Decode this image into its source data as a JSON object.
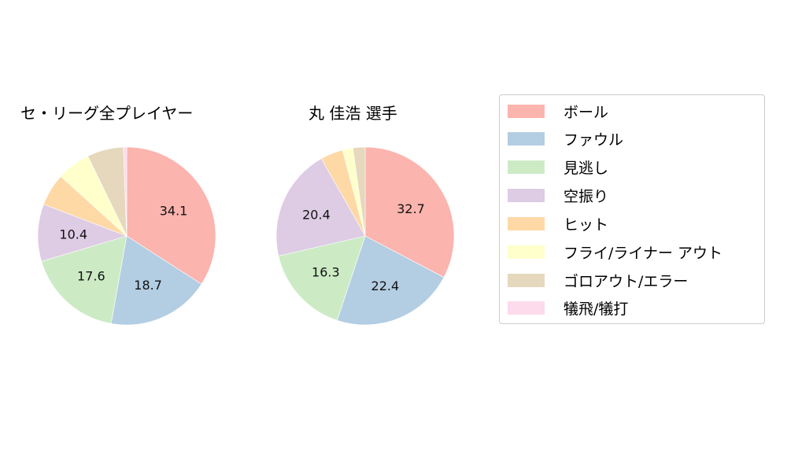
{
  "chart_data": [
    {
      "type": "pie",
      "title": "セ・リーグ全プレイヤー",
      "categories": [
        "ボール",
        "ファウル",
        "見逃し",
        "空振り",
        "ヒット",
        "フライ/ライナー アウト",
        "ゴロアウト/エラー",
        "犠飛/犠打"
      ],
      "values": [
        34.1,
        18.7,
        17.6,
        10.4,
        5.9,
        6.1,
        6.6,
        0.6
      ],
      "labels_shown": [
        "34.1",
        "18.7",
        "17.6",
        "10.4",
        "",
        "",
        "",
        ""
      ]
    },
    {
      "type": "pie",
      "title": "丸 佳浩  選手",
      "categories": [
        "ボール",
        "ファウル",
        "見逃し",
        "空振り",
        "ヒット",
        "フライ/ライナー アウト",
        "ゴロアウト/エラー",
        "犠飛/犠打"
      ],
      "values": [
        32.7,
        22.4,
        16.3,
        20.4,
        4.1,
        1.9,
        2.2,
        0.0
      ],
      "labels_shown": [
        "32.7",
        "22.4",
        "16.3",
        "20.4",
        "",
        "",
        "",
        ""
      ]
    }
  ],
  "colors": [
    "#fbb4ae",
    "#b3cde3",
    "#ccebc5",
    "#decbe4",
    "#fed9a6",
    "#ffffcc",
    "#e5d8bd",
    "#fddaec"
  ],
  "titles": {
    "left": "セ・リーグ全プレイヤー",
    "right": "丸 佳浩  選手"
  },
  "legend": {
    "items": [
      {
        "label": "ボール",
        "color": "#fbb4ae"
      },
      {
        "label": "ファウル",
        "color": "#b3cde3"
      },
      {
        "label": "見逃し",
        "color": "#ccebc5"
      },
      {
        "label": "空振り",
        "color": "#decbe4"
      },
      {
        "label": "ヒット",
        "color": "#fed9a6"
      },
      {
        "label": "フライ/ライナー アウト",
        "color": "#ffffcc"
      },
      {
        "label": "ゴロアウト/エラー",
        "color": "#e5d8bd"
      },
      {
        "label": "犠飛/犠打",
        "color": "#fddaec"
      }
    ]
  }
}
